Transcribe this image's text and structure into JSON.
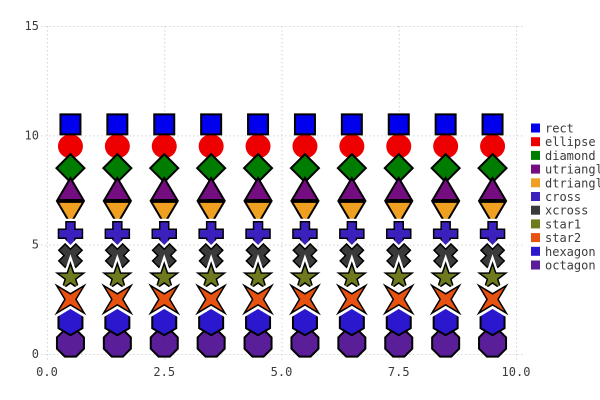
{
  "chart_data": {
    "type": "scatter",
    "title": "",
    "xlabel": "",
    "ylabel": "",
    "xlim": [
      0,
      10
    ],
    "ylim": [
      0,
      15
    ],
    "grid": true,
    "grid_style": "dotted",
    "grid_color": "#d3d3d3",
    "background_color": "#ffffff",
    "text_color": "#3c3c3c",
    "marker_stroke_color": "#000000",
    "legend_position": "right",
    "x_tick_values": [
      0,
      2.5,
      5,
      7.5,
      10
    ],
    "x_tick_labels": [
      "0.0",
      "2.5",
      "5.0",
      "7.5",
      "10.0"
    ],
    "y_tick_values": [
      0,
      5,
      10,
      15
    ],
    "y_tick_labels": [
      "0",
      "5",
      "10",
      "15"
    ],
    "x": [
      0.5,
      1.5,
      2.5,
      3.5,
      4.5,
      5.5,
      6.5,
      7.5,
      8.5,
      9.5
    ],
    "series": [
      {
        "name": "rect",
        "marker": "rect",
        "color": "#0000ee",
        "y": 10.5
      },
      {
        "name": "ellipse",
        "marker": "ellipse",
        "color": "#ee0000",
        "y": 9.5
      },
      {
        "name": "diamond",
        "marker": "diamond",
        "color": "#007d00",
        "y": 8.5
      },
      {
        "name": "utriangle",
        "marker": "utriangle",
        "color": "#730d80",
        "y": 7.5
      },
      {
        "name": "dtriangle",
        "marker": "dtriangle",
        "color": "#efa020",
        "y": 6.5
      },
      {
        "name": "cross",
        "marker": "cross",
        "color": "#3c20be",
        "y": 5.5
      },
      {
        "name": "xcross",
        "marker": "xcross",
        "color": "#3a3a3a",
        "y": 4.5
      },
      {
        "name": "star1",
        "marker": "star1",
        "color": "#6f7a1e",
        "y": 3.5
      },
      {
        "name": "star2",
        "marker": "star2",
        "color": "#e85211",
        "y": 2.5
      },
      {
        "name": "hexagon",
        "marker": "hexagon",
        "color": "#2b17ce",
        "y": 1.5
      },
      {
        "name": "octagon",
        "marker": "octagon",
        "color": "#5a1e99",
        "y": 0.5
      }
    ]
  },
  "legend": {
    "items": [
      {
        "label": "rect",
        "color": "#0000ee"
      },
      {
        "label": "ellipse",
        "color": "#ee0000"
      },
      {
        "label": "diamond",
        "color": "#007d00"
      },
      {
        "label": "utriangle",
        "color": "#730d80"
      },
      {
        "label": "dtriangle",
        "color": "#efa020"
      },
      {
        "label": "cross",
        "color": "#3c20be"
      },
      {
        "label": "xcross",
        "color": "#3a3a3a"
      },
      {
        "label": "star1",
        "color": "#6f7a1e"
      },
      {
        "label": "star2",
        "color": "#e85211"
      },
      {
        "label": "hexagon",
        "color": "#2b17ce"
      },
      {
        "label": "octagon",
        "color": "#5a1e99"
      }
    ]
  }
}
